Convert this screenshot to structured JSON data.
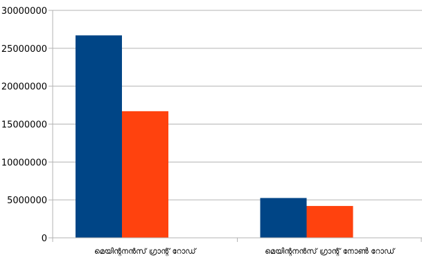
{
  "chart_data": {
    "type": "bar",
    "title": "",
    "xlabel": "",
    "ylabel": "",
    "categories": [
      "മെയിന്റനൻസ് ഗ്രാന്റ് റോഡ്",
      "മെയിന്റനൻസ് ഗ്രാന്റ് നോൺ റോഡ്"
    ],
    "series": [
      {
        "color": "#004586",
        "values": [
          26700000,
          5250000
        ]
      },
      {
        "color": "#ff420e",
        "values": [
          16700000,
          4200000
        ]
      }
    ],
    "ylim": [
      0,
      30000000
    ],
    "y_ticks": [
      "0",
      "5000000",
      "10000000",
      "15000000",
      "20000000",
      "25000000",
      "30000000"
    ],
    "grid": true,
    "legend": "none"
  }
}
